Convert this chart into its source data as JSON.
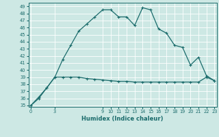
{
  "xlabel": "Humidex (Indice chaleur)",
  "background_color": "#cde8e4",
  "line_color": "#1a6b6b",
  "grid_color": "#ffffff",
  "ylim": [
    34.8,
    49.5
  ],
  "xlim": [
    -0.3,
    23.3
  ],
  "yticks": [
    35,
    36,
    37,
    38,
    39,
    40,
    41,
    42,
    43,
    44,
    45,
    46,
    47,
    48,
    49
  ],
  "xticks": [
    0,
    3,
    9,
    10,
    11,
    12,
    13,
    14,
    15,
    16,
    17,
    18,
    19,
    20,
    21,
    22,
    23
  ],
  "line1_x": [
    0,
    1,
    2,
    3,
    4,
    5,
    6,
    7,
    8,
    9,
    10,
    11,
    12,
    13,
    14,
    15,
    16,
    17,
    18,
    19,
    20,
    21,
    22,
    23
  ],
  "line1_y": [
    35.0,
    36.2,
    37.5,
    39.0,
    41.5,
    43.5,
    45.5,
    46.5,
    47.5,
    48.5,
    48.5,
    47.5,
    47.5,
    46.3,
    48.8,
    48.5,
    45.8,
    45.2,
    43.5,
    43.2,
    40.7,
    41.8,
    39.2,
    38.5
  ],
  "line2_x": [
    0,
    1,
    2,
    3,
    4,
    5,
    6,
    7,
    8,
    9,
    10,
    11,
    12,
    13,
    14,
    15,
    16,
    17,
    18,
    19,
    20,
    21,
    22,
    23
  ],
  "line2_y": [
    35.0,
    36.0,
    37.5,
    39.0,
    39.0,
    39.0,
    39.0,
    38.8,
    38.7,
    38.6,
    38.5,
    38.4,
    38.4,
    38.3,
    38.3,
    38.3,
    38.3,
    38.3,
    38.3,
    38.3,
    38.3,
    38.3,
    39.0,
    38.5
  ],
  "xlabel_fontsize": 6.0,
  "tick_fontsize": 4.8,
  "marker_size": 3.0,
  "linewidth": 0.9
}
